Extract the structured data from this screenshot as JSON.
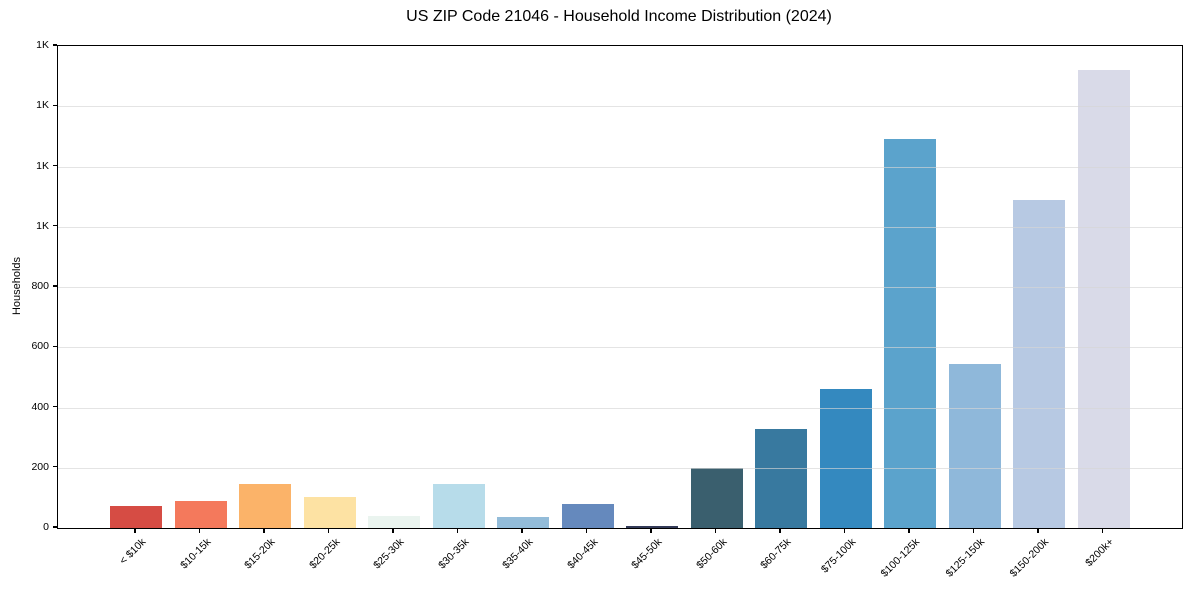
{
  "chart_data": {
    "type": "bar",
    "title": "US ZIP Code 21046 - Household Income Distribution (2024)",
    "xlabel": "",
    "ylabel": "Households",
    "ylim": [
      0,
      1600
    ],
    "ytick_interval": 200,
    "ytick_labels": [
      "0",
      "200",
      "400",
      "600",
      "800",
      "1K",
      "1K",
      "1K",
      "1K"
    ],
    "grid": "horizontal",
    "gridline_color": "#e8e8e8",
    "axis_color": "#000000",
    "legend": false,
    "xtick_rotation": 45,
    "categories": [
      "< $10k",
      "$10-15k",
      "$15-20k",
      "$20-25k",
      "$25-30k",
      "$30-35k",
      "$35-40k",
      "$40-45k",
      "$45-50k",
      "$50-60k",
      "$60-75k",
      "$75-100k",
      "$100-125k",
      "$125-150k",
      "$150-200k",
      "$200k+"
    ],
    "values": [
      72,
      90,
      145,
      103,
      40,
      145,
      35,
      80,
      8,
      200,
      330,
      460,
      1290,
      545,
      1090,
      1520
    ],
    "bar_colors": [
      "#d64c44",
      "#f4795c",
      "#fbb369",
      "#fde2a3",
      "#eaf4ef",
      "#b7dcea",
      "#93bcd9",
      "#6589bd",
      "#333a58",
      "#3a5f6e",
      "#38799f",
      "#3489bf",
      "#5ba3cc",
      "#8fb8da",
      "#b7c9e3",
      "#d9dae8"
    ]
  }
}
